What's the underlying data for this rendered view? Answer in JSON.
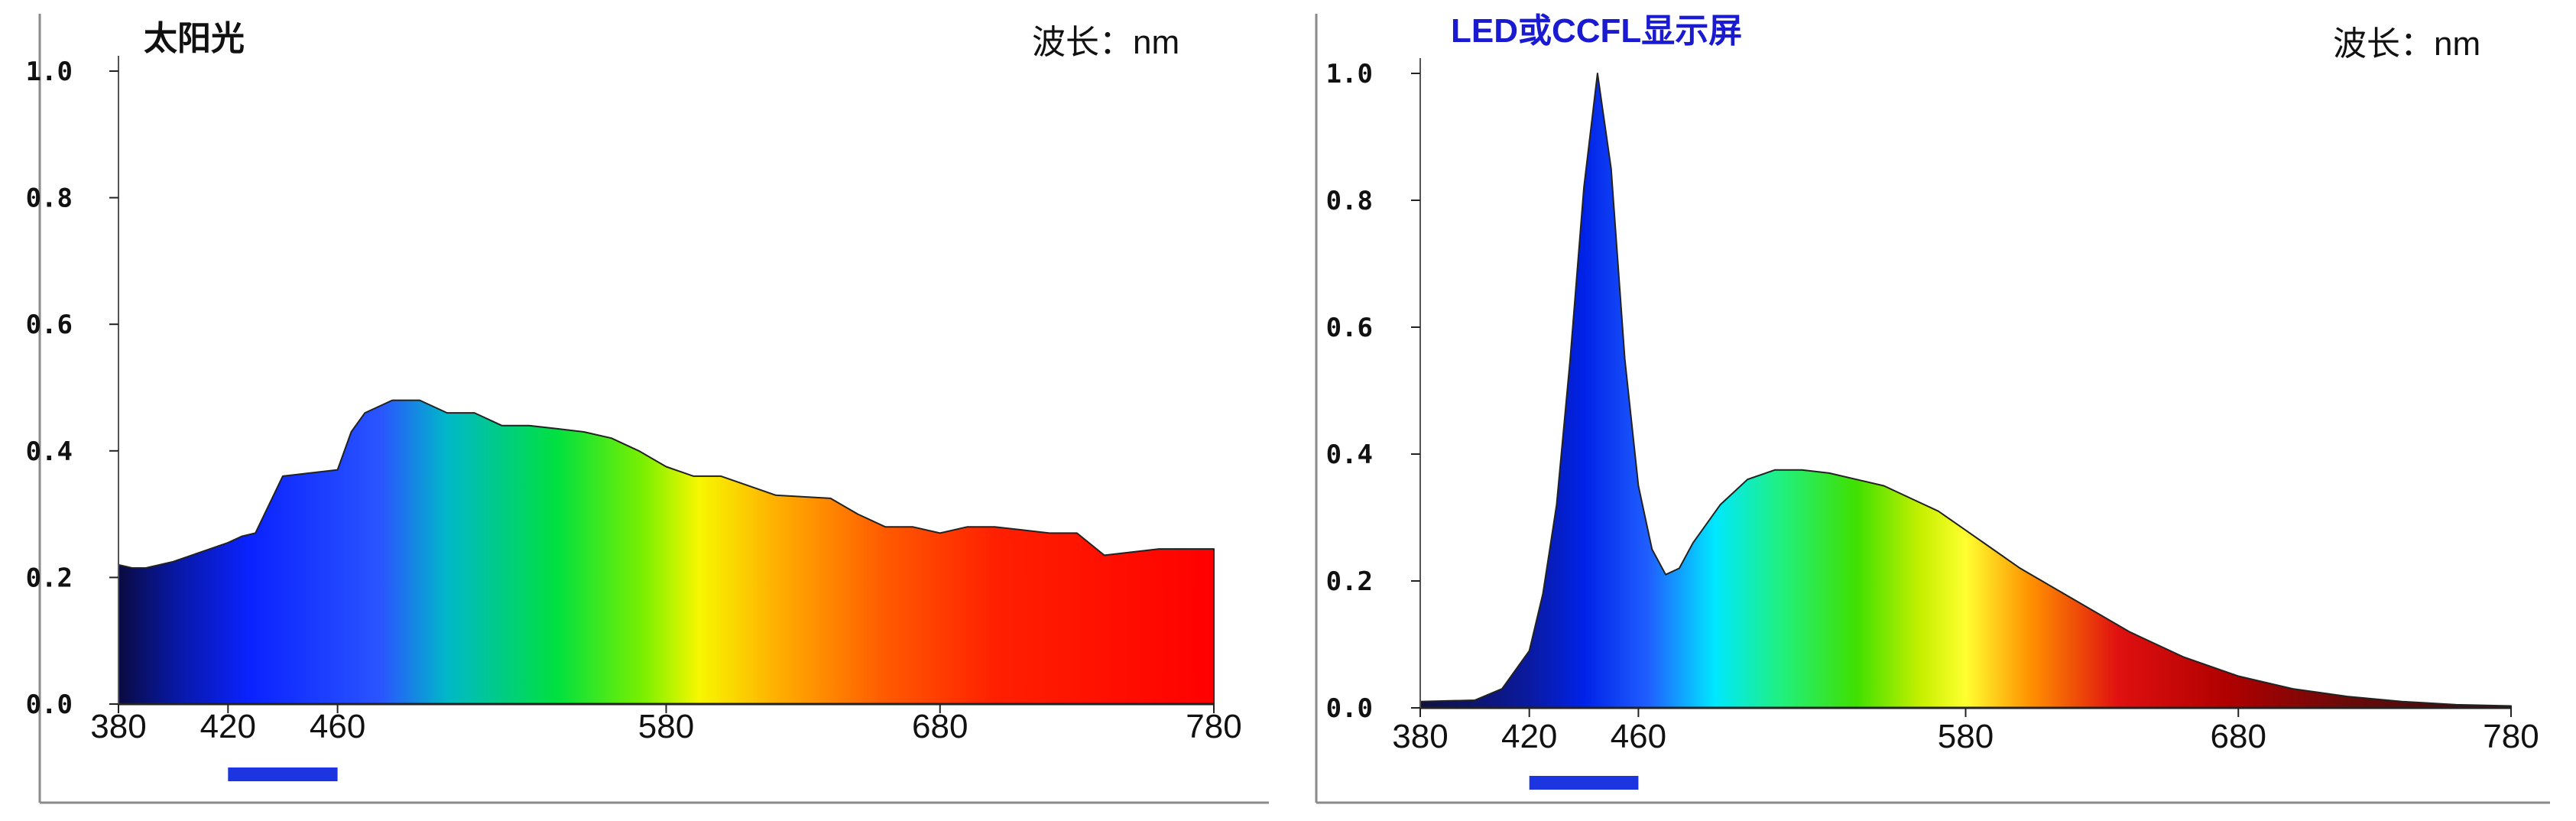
{
  "chart_data": [
    {
      "type": "area",
      "title": "太阳光",
      "title_color": "#111111",
      "xlabel": "波长：nm",
      "ylabel": "",
      "xlim": [
        380,
        780
      ],
      "ylim": [
        0,
        1.0
      ],
      "y_ticks": [
        "0.0",
        "0.2",
        "0.4",
        "0.6",
        "0.8",
        "1.0"
      ],
      "x_ticks": [
        "380",
        "420",
        "460",
        "580",
        "680",
        "780"
      ],
      "x_tick_values": [
        380,
        420,
        460,
        580,
        680,
        780
      ],
      "x": [
        380,
        385,
        390,
        400,
        410,
        420,
        425,
        430,
        440,
        450,
        460,
        465,
        470,
        480,
        490,
        500,
        510,
        520,
        530,
        540,
        550,
        560,
        570,
        580,
        590,
        600,
        620,
        640,
        650,
        660,
        670,
        680,
        690,
        700,
        710,
        720,
        730,
        740,
        750,
        760,
        770,
        780
      ],
      "values": [
        0.22,
        0.215,
        0.215,
        0.225,
        0.24,
        0.255,
        0.265,
        0.27,
        0.36,
        0.365,
        0.37,
        0.43,
        0.46,
        0.48,
        0.48,
        0.46,
        0.46,
        0.44,
        0.44,
        0.435,
        0.43,
        0.42,
        0.4,
        0.375,
        0.36,
        0.36,
        0.33,
        0.325,
        0.3,
        0.28,
        0.28,
        0.27,
        0.28,
        0.28,
        0.275,
        0.27,
        0.27,
        0.235,
        0.24,
        0.245,
        0.245,
        0.245
      ],
      "legend": "none",
      "grid": false,
      "highlight_band": [
        420,
        460
      ],
      "highlight_color": "#1c35e0"
    },
    {
      "type": "area",
      "title": "LED或CCFL显示屏",
      "title_color": "#1a1ad0",
      "xlabel": "波长：nm",
      "ylabel": "",
      "xlim": [
        380,
        780
      ],
      "ylim": [
        0,
        1.0
      ],
      "y_ticks": [
        "0.0",
        "0.2",
        "0.4",
        "0.6",
        "0.8",
        "1.0"
      ],
      "x_ticks": [
        "380",
        "420",
        "460",
        "580",
        "680",
        "780"
      ],
      "x_tick_values": [
        380,
        420,
        460,
        580,
        680,
        780
      ],
      "x": [
        380,
        400,
        410,
        420,
        425,
        430,
        435,
        440,
        445,
        450,
        455,
        460,
        465,
        470,
        475,
        480,
        490,
        500,
        510,
        520,
        530,
        540,
        550,
        560,
        570,
        580,
        590,
        600,
        620,
        640,
        660,
        680,
        700,
        720,
        740,
        760,
        780
      ],
      "values": [
        0.01,
        0.012,
        0.03,
        0.09,
        0.18,
        0.32,
        0.55,
        0.82,
        1.0,
        0.85,
        0.55,
        0.35,
        0.25,
        0.21,
        0.22,
        0.26,
        0.32,
        0.36,
        0.375,
        0.375,
        0.37,
        0.36,
        0.35,
        0.33,
        0.31,
        0.28,
        0.25,
        0.22,
        0.17,
        0.12,
        0.08,
        0.05,
        0.03,
        0.018,
        0.01,
        0.005,
        0.003
      ],
      "legend": "none",
      "grid": false,
      "highlight_band": [
        420,
        460
      ],
      "highlight_color": "#1c35e0"
    }
  ]
}
